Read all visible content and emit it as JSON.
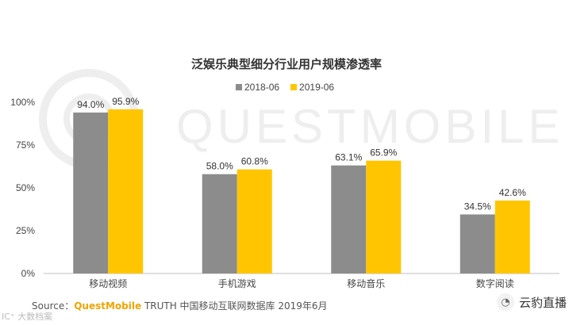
{
  "chart_data": {
    "type": "bar",
    "title": "泛娱乐典型细分行业用户规模渗透率",
    "categories": [
      "移动视频",
      "手机游戏",
      "移动音乐",
      "数字阅读"
    ],
    "series": [
      {
        "name": "2018-06",
        "color": "#8c8c8c",
        "values": [
          94.0,
          58.0,
          63.1,
          34.5
        ],
        "labels": [
          "94.0%",
          "58.0%",
          "63.1%",
          "34.5%"
        ]
      },
      {
        "name": "2019-06",
        "color": "#ffc600",
        "values": [
          95.9,
          60.8,
          65.9,
          42.6
        ],
        "labels": [
          "95.9%",
          "60.8%",
          "65.9%",
          "42.6%"
        ]
      }
    ],
    "ylim": [
      0,
      100
    ],
    "yticks": [
      0,
      25,
      50,
      75,
      100
    ],
    "ytick_labels": [
      "0%",
      "25%",
      "50%",
      "75%",
      "100%"
    ],
    "xlabel": "",
    "ylabel": "",
    "grid": false,
    "legend_position": "top-center"
  },
  "watermark": "QUESTMOBILE",
  "source": {
    "prefix": "Source：",
    "brand": "QuestMobile",
    "text": " TRUTH 中国移动互联网数据库 2019年6月"
  },
  "watermark_left": "IC⁺ 大数档案",
  "watermark_right": "云豹直播",
  "watermark_right_icon": "wechat-icon"
}
